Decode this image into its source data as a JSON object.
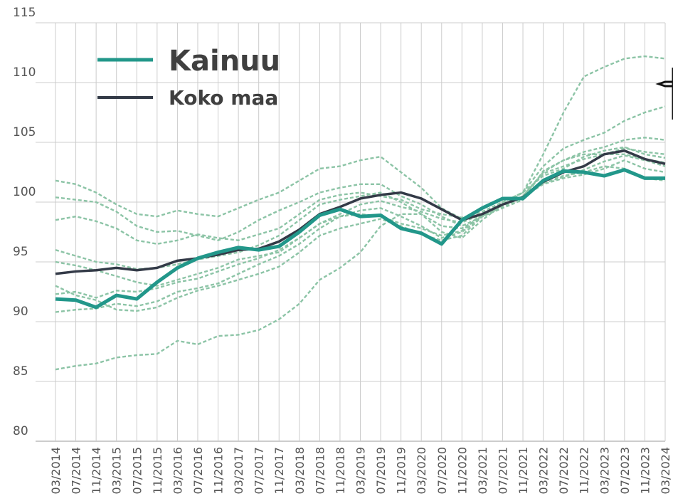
{
  "chart_data": {
    "type": "line",
    "categories": [
      "03/2014",
      "07/2014",
      "11/2014",
      "03/2015",
      "07/2015",
      "11/2015",
      "03/2016",
      "07/2016",
      "11/2016",
      "03/2017",
      "07/2017",
      "11/2017",
      "03/2018",
      "07/2018",
      "11/2018",
      "03/2019",
      "07/2019",
      "11/2019",
      "03/2020",
      "07/2020",
      "11/2020",
      "03/2021",
      "07/2021",
      "11/2021",
      "03/2022",
      "07/2022",
      "11/2022",
      "03/2023",
      "07/2023",
      "11/2023",
      "03/2024"
    ],
    "series": [
      {
        "name": "Kainuu",
        "color": "#22978a",
        "values": [
          91.9,
          91.8,
          91.2,
          92.2,
          91.9,
          93.3,
          94.5,
          95.3,
          95.8,
          96.2,
          96.0,
          96.3,
          97.5,
          98.9,
          99.4,
          98.8,
          98.9,
          97.8,
          97.4,
          96.5,
          98.5,
          99.5,
          100.3,
          100.3,
          101.8,
          102.6,
          102.5,
          102.2,
          102.7,
          102.0,
          102.0
        ]
      },
      {
        "name": "Koko maa",
        "color": "#333a47",
        "values": [
          94.0,
          94.2,
          94.3,
          94.5,
          94.3,
          94.5,
          95.1,
          95.3,
          95.6,
          96.0,
          96.1,
          96.7,
          97.7,
          99.0,
          99.6,
          100.3,
          100.6,
          100.8,
          100.3,
          99.4,
          98.5,
          99.0,
          99.8,
          100.4,
          101.7,
          102.5,
          103.0,
          104.0,
          104.3,
          103.6,
          103.2
        ]
      },
      {
        "color": "#8cc4a6",
        "dashed": true,
        "values": [
          101.8,
          101.5,
          100.8,
          99.8,
          99.0,
          98.8,
          99.3,
          99.0,
          98.8,
          99.5,
          100.2,
          100.8,
          101.8,
          102.8,
          103.0,
          103.5,
          103.8,
          102.5,
          101.2,
          99.5,
          98.6,
          98.8,
          99.8,
          100.8,
          104.0,
          107.5,
          110.5,
          111.3,
          112.0,
          112.2,
          112.0
        ]
      },
      {
        "color": "#8cc4a6",
        "dashed": true,
        "values": [
          86.0,
          86.3,
          86.5,
          87.0,
          87.2,
          87.3,
          88.4,
          88.1,
          88.8,
          88.9,
          89.3,
          90.2,
          91.5,
          93.5,
          94.5,
          95.8,
          98.0,
          99.0,
          99.0,
          97.5,
          97.0,
          98.5,
          99.8,
          100.5,
          102.5,
          103.5,
          104.0,
          104.0,
          104.5,
          104.2,
          104.0
        ]
      },
      {
        "color": "#8cc4a6",
        "dashed": true,
        "values": [
          100.4,
          100.2,
          100.0,
          99.2,
          98.0,
          97.5,
          97.6,
          97.2,
          96.8,
          97.5,
          98.5,
          99.3,
          100.0,
          100.8,
          101.2,
          101.5,
          101.5,
          100.5,
          99.8,
          98.8,
          98.0,
          98.8,
          100.0,
          100.8,
          103.0,
          104.5,
          105.2,
          105.8,
          106.8,
          107.5,
          108.0
        ]
      },
      {
        "color": "#8cc4a6",
        "dashed": true,
        "values": [
          96.0,
          95.5,
          95.0,
          94.8,
          94.4,
          94.5,
          94.8,
          95.2,
          95.5,
          95.8,
          96.4,
          97.2,
          98.5,
          99.8,
          100.2,
          100.5,
          100.8,
          100.0,
          99.0,
          98.0,
          97.8,
          98.8,
          99.5,
          100.2,
          102.6,
          103.5,
          104.2,
          104.6,
          105.2,
          105.4,
          105.2
        ]
      },
      {
        "color": "#8cc4a6",
        "dashed": true,
        "values": [
          93.0,
          92.2,
          91.8,
          91.0,
          90.9,
          91.2,
          92.0,
          92.6,
          93.0,
          93.5,
          94.0,
          94.6,
          95.8,
          97.2,
          97.8,
          98.2,
          98.6,
          98.0,
          97.3,
          96.8,
          97.2,
          98.8,
          99.6,
          100.4,
          101.5,
          102.0,
          102.3,
          102.8,
          103.5,
          102.8,
          102.5
        ]
      },
      {
        "color": "#8cc4a6",
        "dashed": true,
        "values": [
          90.8,
          91.0,
          91.1,
          91.5,
          91.3,
          91.7,
          92.5,
          92.8,
          93.2,
          94.0,
          94.8,
          95.5,
          96.5,
          97.8,
          98.8,
          99.3,
          99.5,
          98.8,
          98.0,
          97.0,
          97.5,
          98.8,
          99.8,
          100.4,
          101.8,
          102.2,
          102.5,
          103.0,
          102.8,
          102.0,
          101.8
        ]
      },
      {
        "color": "#8cc4a6",
        "dashed": true,
        "values": [
          98.5,
          98.8,
          98.4,
          97.8,
          96.8,
          96.5,
          96.8,
          97.3,
          97.0,
          96.8,
          97.3,
          97.8,
          99.0,
          100.2,
          100.6,
          100.8,
          100.5,
          100.2,
          99.4,
          99.0,
          98.7,
          99.2,
          100.0,
          100.8,
          102.2,
          102.8,
          103.8,
          104.3,
          104.6,
          104.0,
          103.7
        ]
      },
      {
        "color": "#8cc4a6",
        "dashed": true,
        "values": [
          95.0,
          94.7,
          94.3,
          93.8,
          93.3,
          93.0,
          93.5,
          94.0,
          94.5,
          95.2,
          95.5,
          95.8,
          97.0,
          98.2,
          99.0,
          99.8,
          100.1,
          99.6,
          99.2,
          98.6,
          98.3,
          99.0,
          99.8,
          100.5,
          102.4,
          103.0,
          103.6,
          104.0,
          104.0,
          103.6,
          103.3
        ]
      },
      {
        "color": "#8cc4a6",
        "dashed": true,
        "values": [
          92.3,
          92.5,
          92.0,
          92.6,
          92.5,
          92.8,
          93.3,
          93.6,
          94.2,
          94.8,
          95.3,
          96.0,
          97.0,
          98.2,
          98.8,
          99.0,
          98.8,
          98.2,
          97.8,
          97.2,
          97.6,
          99.0,
          99.8,
          100.4,
          101.6,
          102.1,
          102.7,
          103.4,
          103.9,
          103.5,
          103.0
        ]
      }
    ],
    "ylim": [
      80,
      115
    ],
    "yticks": [
      80,
      85,
      90,
      95,
      100,
      105,
      110,
      115
    ],
    "grid": true
  }
}
